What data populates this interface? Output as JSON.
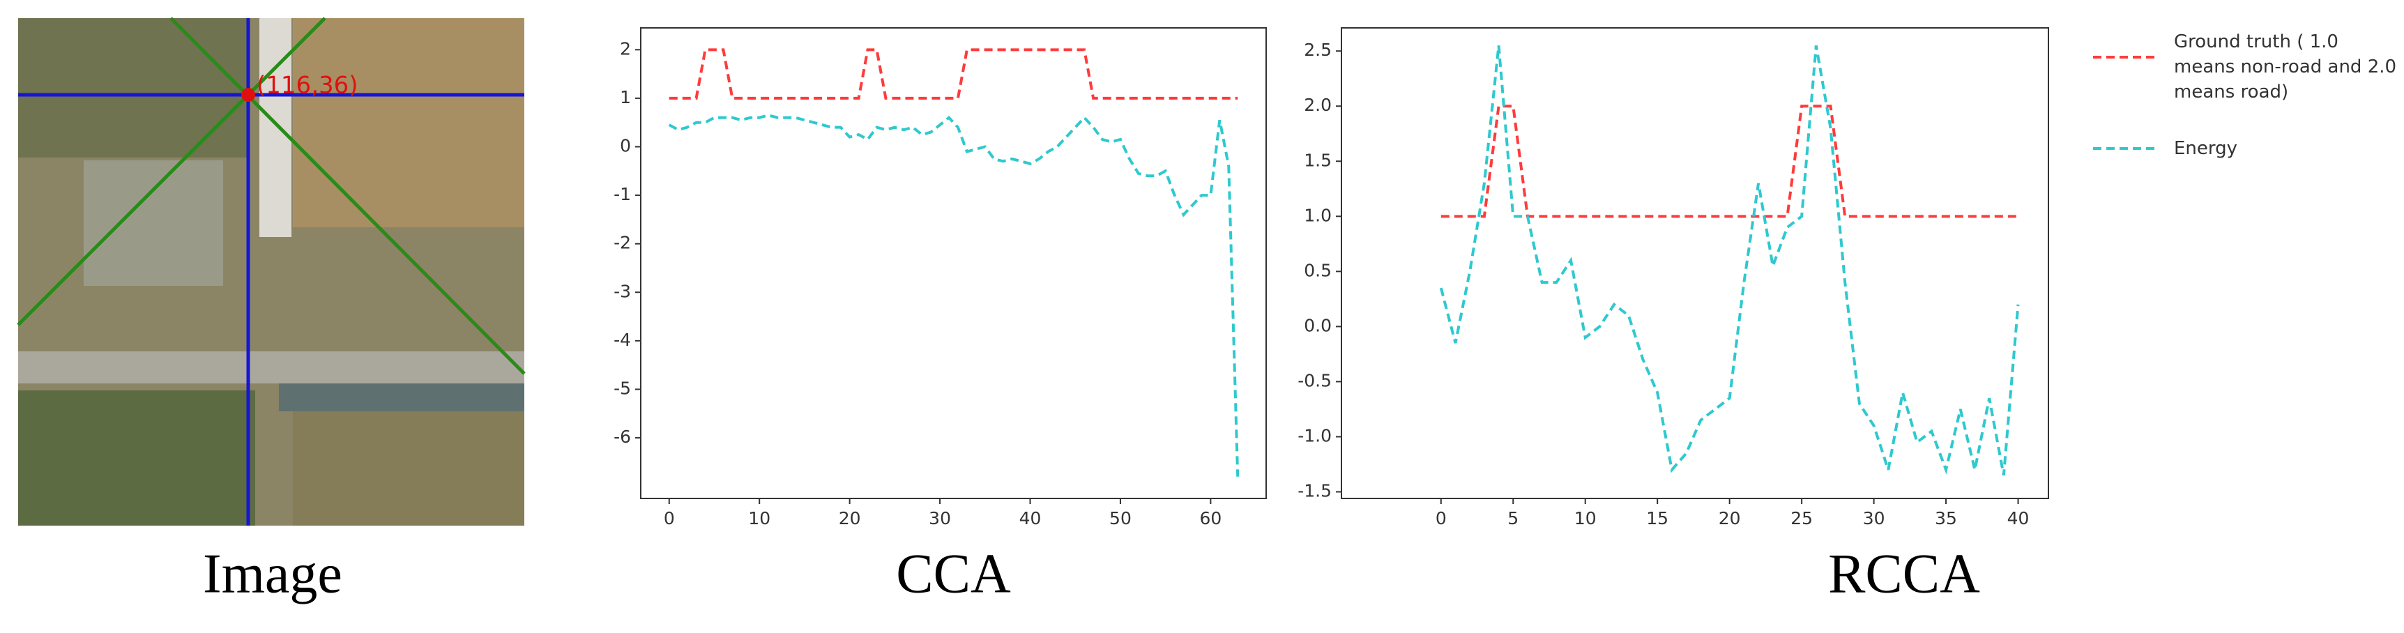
{
  "image": {
    "point_label": "(116,36)",
    "caption": "Image"
  },
  "chart_data": [
    {
      "type": "line",
      "title": "CCA",
      "x": [
        0,
        1,
        2,
        3,
        4,
        5,
        6,
        7,
        8,
        9,
        10,
        11,
        12,
        13,
        14,
        15,
        16,
        17,
        18,
        19,
        20,
        21,
        22,
        23,
        24,
        25,
        26,
        27,
        28,
        29,
        30,
        31,
        32,
        33,
        34,
        35,
        36,
        37,
        38,
        39,
        40,
        41,
        42,
        43,
        44,
        45,
        46,
        47,
        48,
        49,
        50,
        51,
        52,
        53,
        54,
        55,
        56,
        57,
        58,
        59,
        60,
        61,
        62,
        63
      ],
      "series": [
        {
          "color": "#ff3b3b",
          "values": [
            1,
            1,
            1,
            1,
            2,
            2,
            2,
            1,
            1,
            1,
            1,
            1,
            1,
            1,
            1,
            1,
            1,
            1,
            1,
            1,
            1,
            1,
            2,
            2,
            1,
            1,
            1,
            1,
            1,
            1,
            1,
            1,
            1,
            2,
            2,
            2,
            2,
            2,
            2,
            2,
            2,
            2,
            2,
            2,
            2,
            2,
            2,
            1,
            1,
            1,
            1,
            1,
            1,
            1,
            1,
            1,
            1,
            1,
            1,
            1,
            1,
            1,
            1,
            1
          ]
        },
        {
          "color": "#2ec9cf",
          "values": [
            0.45,
            0.35,
            0.4,
            0.5,
            0.5,
            0.6,
            0.6,
            0.6,
            0.55,
            0.6,
            0.6,
            0.65,
            0.6,
            0.6,
            0.6,
            0.55,
            0.5,
            0.45,
            0.4,
            0.4,
            0.2,
            0.25,
            0.15,
            0.4,
            0.35,
            0.4,
            0.35,
            0.4,
            0.25,
            0.3,
            0.45,
            0.6,
            0.4,
            -0.1,
            -0.05,
            0,
            -0.25,
            -0.3,
            -0.25,
            -0.3,
            -0.35,
            -0.25,
            -0.1,
            0,
            0.2,
            0.4,
            0.6,
            0.4,
            0.15,
            0.1,
            0.15,
            -0.25,
            -0.55,
            -0.6,
            -0.6,
            -0.5,
            -1.0,
            -1.4,
            -1.2,
            -1.0,
            -1.0,
            0.55,
            -0.4,
            -6.8
          ]
        }
      ],
      "xlim": [
        -3.15,
        66.15
      ],
      "xticks": [
        0,
        10,
        20,
        30,
        40,
        50,
        60
      ],
      "ylim": [
        -7.25,
        2.45
      ],
      "yticks": [
        2,
        1,
        0,
        -1,
        -2,
        -3,
        -4,
        -5,
        -6
      ]
    },
    {
      "type": "line",
      "title": "RCCA",
      "x": [
        0,
        1,
        2,
        3,
        4,
        5,
        6,
        7,
        8,
        9,
        10,
        11,
        12,
        13,
        14,
        15,
        16,
        17,
        18,
        19,
        20,
        21,
        22,
        23,
        24,
        25,
        26,
        27,
        28,
        29,
        30,
        31,
        32,
        33,
        34,
        35,
        36,
        37,
        38,
        39,
        40
      ],
      "series": [
        {
          "name": "Ground truth ( 1.0 means non-road and 2.0 means road)",
          "color": "#ff3b3b",
          "values": [
            1,
            1,
            1,
            1,
            2,
            2,
            1,
            1,
            1,
            1,
            1,
            1,
            1,
            1,
            1,
            1,
            1,
            1,
            1,
            1,
            1,
            1,
            1,
            1,
            1,
            2,
            2,
            2,
            1,
            1,
            1,
            1,
            1,
            1,
            1,
            1,
            1,
            1,
            1,
            1,
            1
          ]
        },
        {
          "name": "Energy",
          "color": "#2ec9cf",
          "values": [
            0.35,
            -0.15,
            0.5,
            1.3,
            2.55,
            1.0,
            1.0,
            0.4,
            0.4,
            0.6,
            -0.1,
            0.0,
            0.2,
            0.1,
            -0.3,
            -0.6,
            -1.3,
            -1.15,
            -0.85,
            -0.75,
            -0.65,
            0.4,
            1.3,
            0.55,
            0.9,
            1.0,
            2.55,
            1.8,
            0.4,
            -0.7,
            -0.9,
            -1.3,
            -0.6,
            -1.05,
            -0.95,
            -1.3,
            -0.75,
            -1.3,
            -0.65,
            -1.35,
            0.2
          ]
        }
      ],
      "xlim": [
        -6.9,
        42.1
      ],
      "xticks": [
        0,
        5,
        10,
        15,
        20,
        25,
        30,
        35,
        40
      ],
      "ylim": [
        -1.56,
        2.71
      ],
      "yticks": [
        2.5,
        {
          "value": 2,
          "label": "2.0"
        },
        1.5,
        {
          "value": 1,
          "label": "1.0"
        },
        0.5,
        {
          "value": 0,
          "label": "0.0"
        },
        -0.5,
        {
          "value": -1,
          "label": "-1.0"
        },
        -1.5
      ]
    }
  ]
}
